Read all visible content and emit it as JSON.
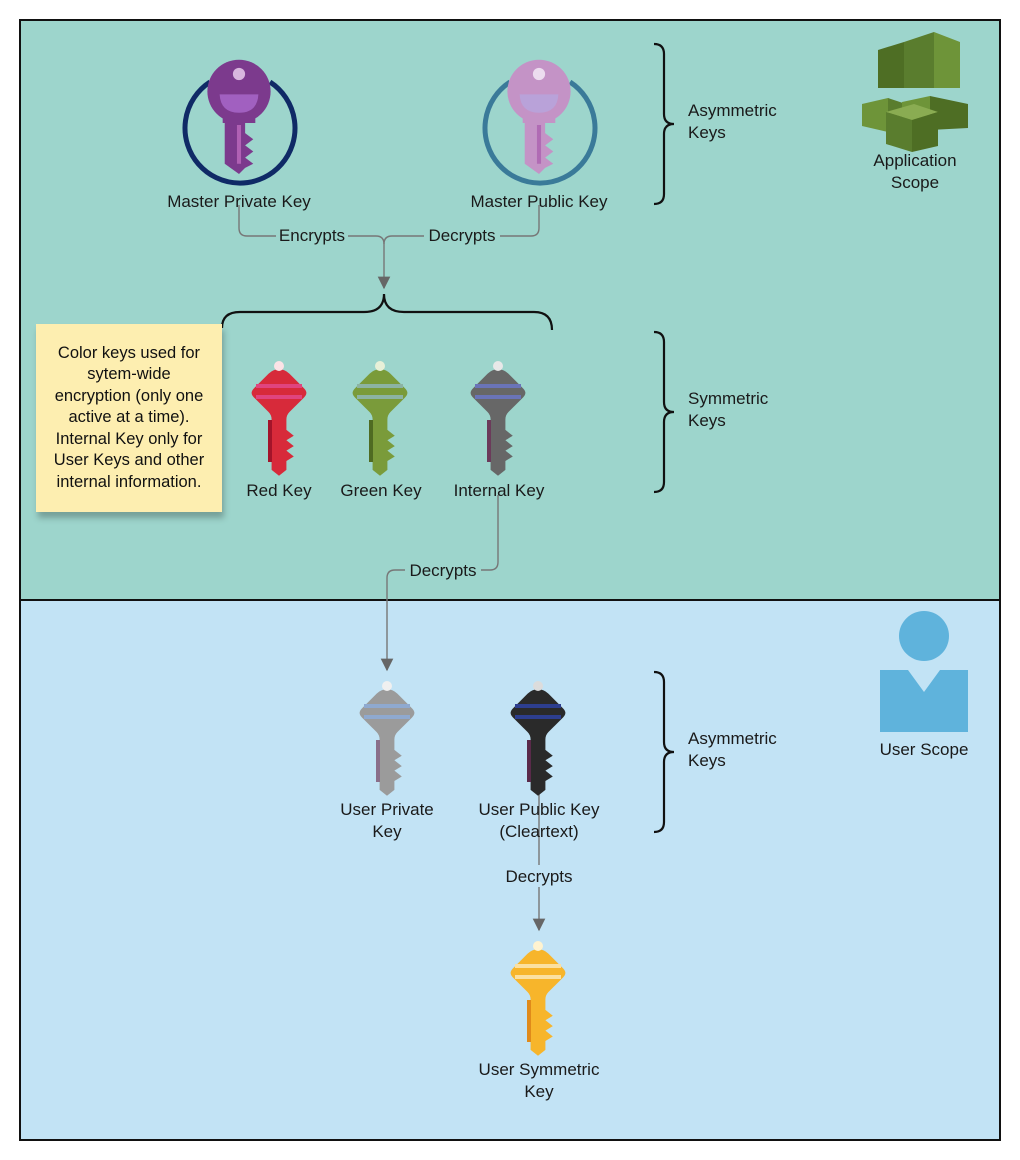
{
  "scopes": {
    "application": "Application\nScope",
    "user": "User Scope"
  },
  "groups": {
    "asymmetric_top": "Asymmetric\nKeys",
    "symmetric": "Symmetric\nKeys",
    "asymmetric_bottom": "Asymmetric\nKeys"
  },
  "keys": {
    "master_private": "Master Private Key",
    "master_public": "Master Public Key",
    "red": "Red Key",
    "green": "Green Key",
    "internal": "Internal Key",
    "user_private": "User Private\nKey",
    "user_public": "User Public Key\n(Cleartext)",
    "user_symmetric": "User Symmetric\nKey"
  },
  "edges": {
    "encrypts": "Encrypts",
    "decrypts_public": "Decrypts",
    "decrypts_internal": "Decrypts",
    "decrypts_user": "Decrypts"
  },
  "note": "Color keys used for\nsytem-wide\nencryption (only one\nactive at a time).\nInternal Key only for\nUser Keys and other\ninternal information.",
  "colors": {
    "app_scope_bg": "#9dd5cc",
    "user_scope_bg": "#c2e3f5",
    "master_private": "#7c3a8d",
    "master_public": "#c493c6",
    "red": "#d72a3a",
    "green": "#7a9b3a",
    "internal": "#676767",
    "user_private": "#9b9b9b",
    "user_public": "#2a2a2a",
    "user_symmetric": "#f7b52b",
    "user_icon": "#5fb3dc",
    "app_icon": "#5a7d2e"
  },
  "icons": [
    "key-icon",
    "ring-icon",
    "app-scope-icon",
    "user-icon",
    "brace-icon"
  ]
}
